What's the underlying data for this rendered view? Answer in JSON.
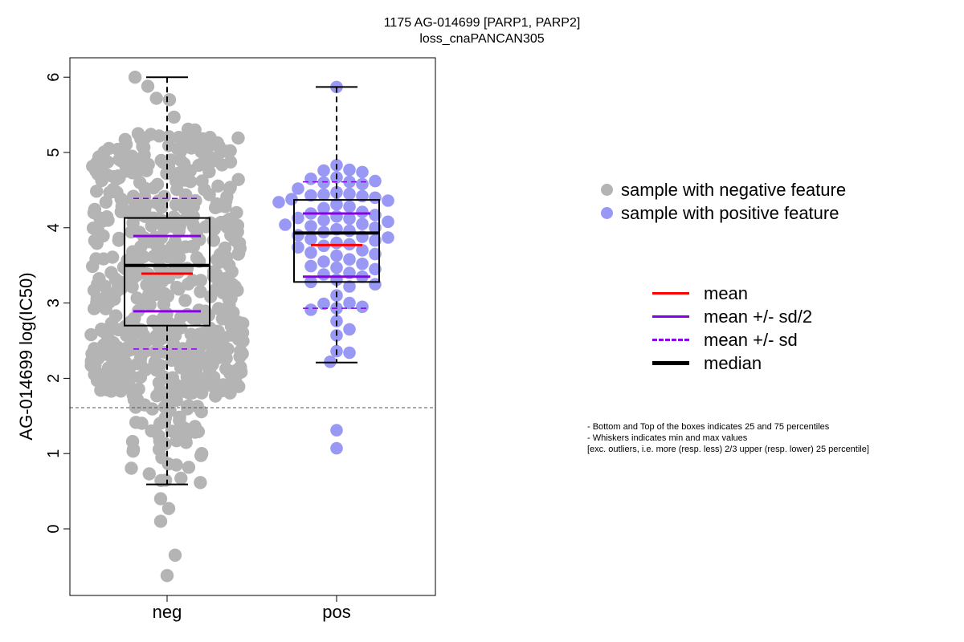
{
  "title": {
    "line1": "1175 AG-014699 [PARP1, PARP2]",
    "line2": "loss_cnaPANCAN305"
  },
  "colors": {
    "neg_points": "#b4b4b4",
    "pos_points": "#9999f5",
    "mean": "#ff0000",
    "sd": "#8a00e6",
    "median": "#000000"
  },
  "legend_points": [
    {
      "label": "sample with negative feature",
      "color": "#b4b4b4"
    },
    {
      "label": "sample with positive feature",
      "color": "#9999f5"
    }
  ],
  "legend_lines": [
    {
      "label": "mean",
      "color": "#ff0000",
      "style": "solid"
    },
    {
      "label": "mean +/- sd/2",
      "color": "#8a00e6",
      "style": "solid"
    },
    {
      "label": "mean +/- sd",
      "color": "#8a00e6",
      "style": "dashed"
    },
    {
      "label": "median",
      "color": "#000000",
      "style": "thick"
    }
  ],
  "notes": [
    "- Bottom and Top of the boxes indicates 25 and 75 percentiles",
    "- Whiskers indicates min and max values",
    "[exc. outliers, i.e. more (resp. less) 2/3 upper (resp. lower) 25 percentile]"
  ],
  "chart_data": {
    "type": "box",
    "title": "1175 AG-014699 [PARP1, PARP2]",
    "subtitle": "loss_cnaPANCAN305",
    "xlabel": "",
    "ylabel": "AG-014699 log(IC50)",
    "categories": [
      "neg",
      "pos"
    ],
    "ylim": [
      -0.85,
      6.27
    ],
    "yticks": [
      0,
      1,
      2,
      3,
      4,
      5,
      6
    ],
    "threshold_line": 1.61,
    "grid": false,
    "series": [
      {
        "category": "neg",
        "whisker_low": 0.59,
        "q1": 2.7,
        "median": 3.5,
        "q3": 4.13,
        "whisker_high": 6.0,
        "mean": 3.39,
        "sd_half_low": 2.89,
        "sd_half_high": 3.89,
        "sd_low": 2.39,
        "sd_high": 4.39,
        "outliers": [
          0.4,
          0.27,
          0.1,
          -0.35,
          -0.62
        ],
        "n_points": 620,
        "points_min": 0.6,
        "points_max": 6.0,
        "extra_points": [
          6.0,
          5.88,
          5.72,
          5.7,
          5.47,
          5.31,
          5.3,
          5.25,
          5.24,
          5.22,
          5.21,
          5.2,
          5.18,
          5.15
        ]
      },
      {
        "category": "pos",
        "whisker_low": 2.21,
        "q1": 3.28,
        "median": 3.93,
        "q3": 4.37,
        "whisker_high": 5.87,
        "mean": 3.77,
        "sd_half_low": 3.35,
        "sd_half_high": 4.19,
        "sd_low": 2.93,
        "sd_high": 4.61,
        "outliers": [
          1.31,
          1.07
        ],
        "points": [
          5.87,
          4.83,
          4.77,
          4.76,
          4.74,
          4.67,
          4.65,
          4.62,
          4.61,
          4.6,
          4.58,
          4.52,
          4.47,
          4.45,
          4.44,
          4.43,
          4.42,
          4.4,
          4.38,
          4.36,
          4.34,
          4.31,
          4.28,
          4.26,
          4.21,
          4.19,
          4.17,
          4.15,
          4.13,
          4.12,
          4.1,
          4.08,
          4.05,
          4.04,
          4.02,
          4.0,
          3.98,
          3.96,
          3.94,
          3.9,
          3.88,
          3.87,
          3.85,
          3.83,
          3.8,
          3.78,
          3.76,
          3.74,
          3.7,
          3.67,
          3.65,
          3.63,
          3.58,
          3.55,
          3.52,
          3.49,
          3.47,
          3.45,
          3.4,
          3.38,
          3.35,
          3.31,
          3.28,
          3.25,
          3.22,
          3.1,
          3.0,
          2.99,
          2.95,
          2.93,
          2.91,
          2.76,
          2.65,
          2.57,
          2.36,
          2.34,
          2.22
        ]
      }
    ]
  }
}
